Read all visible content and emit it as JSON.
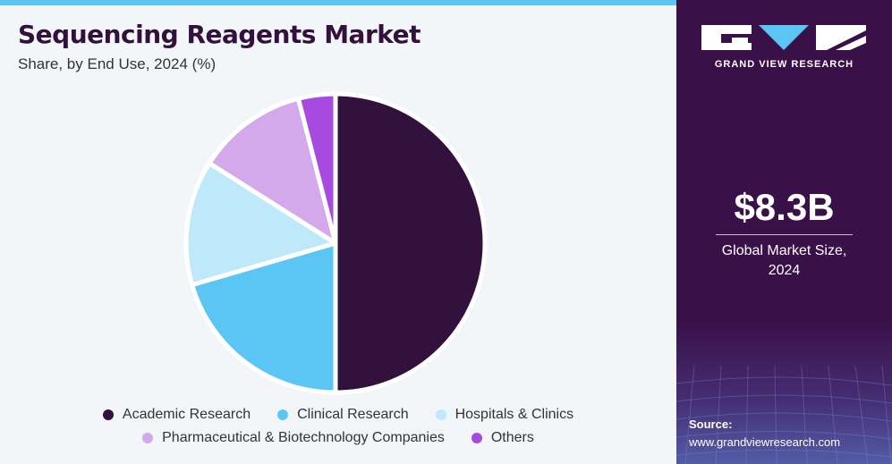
{
  "header": {
    "title": "Sequencing Reagents Market",
    "subtitle": "Share, by End Use, 2024 (%)"
  },
  "chart_data": {
    "type": "pie",
    "title": "Sequencing Reagents Market",
    "subtitle": "Share, by End Use, 2024 (%)",
    "categories": [
      "Academic Research",
      "Clinical Research",
      "Hospitals & Clinics",
      "Pharmaceutical & Biotechnology Companies",
      "Others"
    ],
    "values": [
      50,
      20.5,
      13.5,
      12,
      4
    ],
    "colors": [
      "#33113d",
      "#5bc6f3",
      "#bfe9fb",
      "#d3a9ec",
      "#a74be0"
    ],
    "legend_position": "bottom"
  },
  "legend": {
    "row1": [
      "Academic Research",
      "Clinical Research",
      "Hospitals & Clinics"
    ],
    "row2": [
      "Pharmaceutical & Biotechnology Companies",
      "Others"
    ]
  },
  "sidebar": {
    "brand": "GRAND VIEW RESEARCH",
    "market_size": "$8.3B",
    "market_caption_line1": "Global Market Size,",
    "market_caption_line2": "2024",
    "source_label": "Source:",
    "source_url": "www.grandviewresearch.com"
  }
}
